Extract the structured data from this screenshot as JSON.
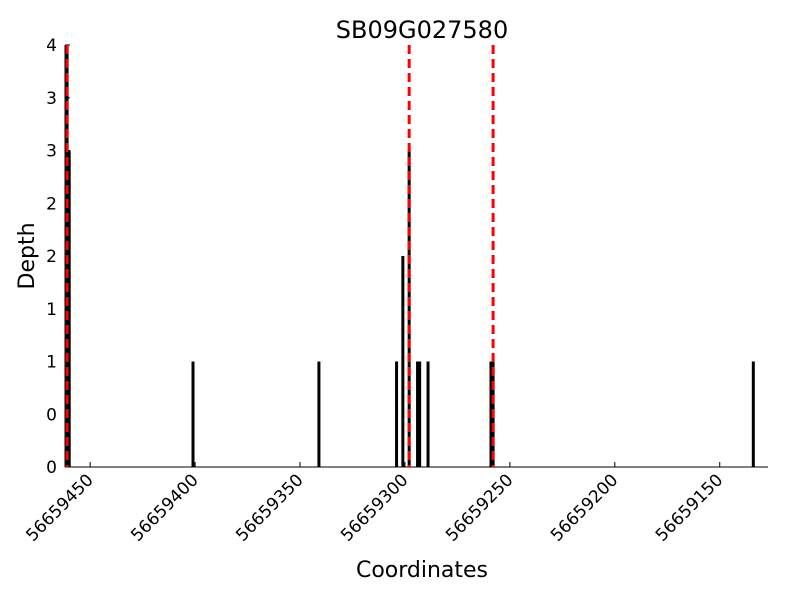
{
  "chart_data": {
    "type": "bar",
    "title": "SB09G027580",
    "xlabel": "Coordinates",
    "ylabel": "Depth",
    "x_reversed": true,
    "xlim": [
      56659462,
      56659127
    ],
    "ylim": [
      0,
      4
    ],
    "x_ticks": [
      56659450,
      56659400,
      56659350,
      56659300,
      56659250,
      56659200,
      56659150
    ],
    "x_tick_labels": [
      "56659450",
      "56659400",
      "56659350",
      "56659300",
      "56659250",
      "56659200",
      "56659150"
    ],
    "y_ticks": [
      0,
      0.5,
      1,
      1.5,
      2,
      2.5,
      3,
      3.5,
      4
    ],
    "y_tick_labels": [
      "0",
      "0",
      "1",
      "1",
      "2",
      "2",
      "3",
      "3",
      "4"
    ],
    "bar_color": "#000000",
    "marker_color": "#ff0000",
    "bars": [
      {
        "x": 56659461,
        "y": 4
      },
      {
        "x": 56659460,
        "y": 3
      },
      {
        "x": 56659401,
        "y": 1
      },
      {
        "x": 56659341,
        "y": 1
      },
      {
        "x": 56659304,
        "y": 1
      },
      {
        "x": 56659301,
        "y": 2
      },
      {
        "x": 56659298,
        "y": 3
      },
      {
        "x": 56659294,
        "y": 1
      },
      {
        "x": 56659293,
        "y": 1
      },
      {
        "x": 56659289,
        "y": 1
      },
      {
        "x": 56659259,
        "y": 1
      },
      {
        "x": 56659258,
        "y": 1
      },
      {
        "x": 56659134,
        "y": 1
      }
    ],
    "markers": [
      56659461,
      56659298,
      56659258
    ]
  }
}
